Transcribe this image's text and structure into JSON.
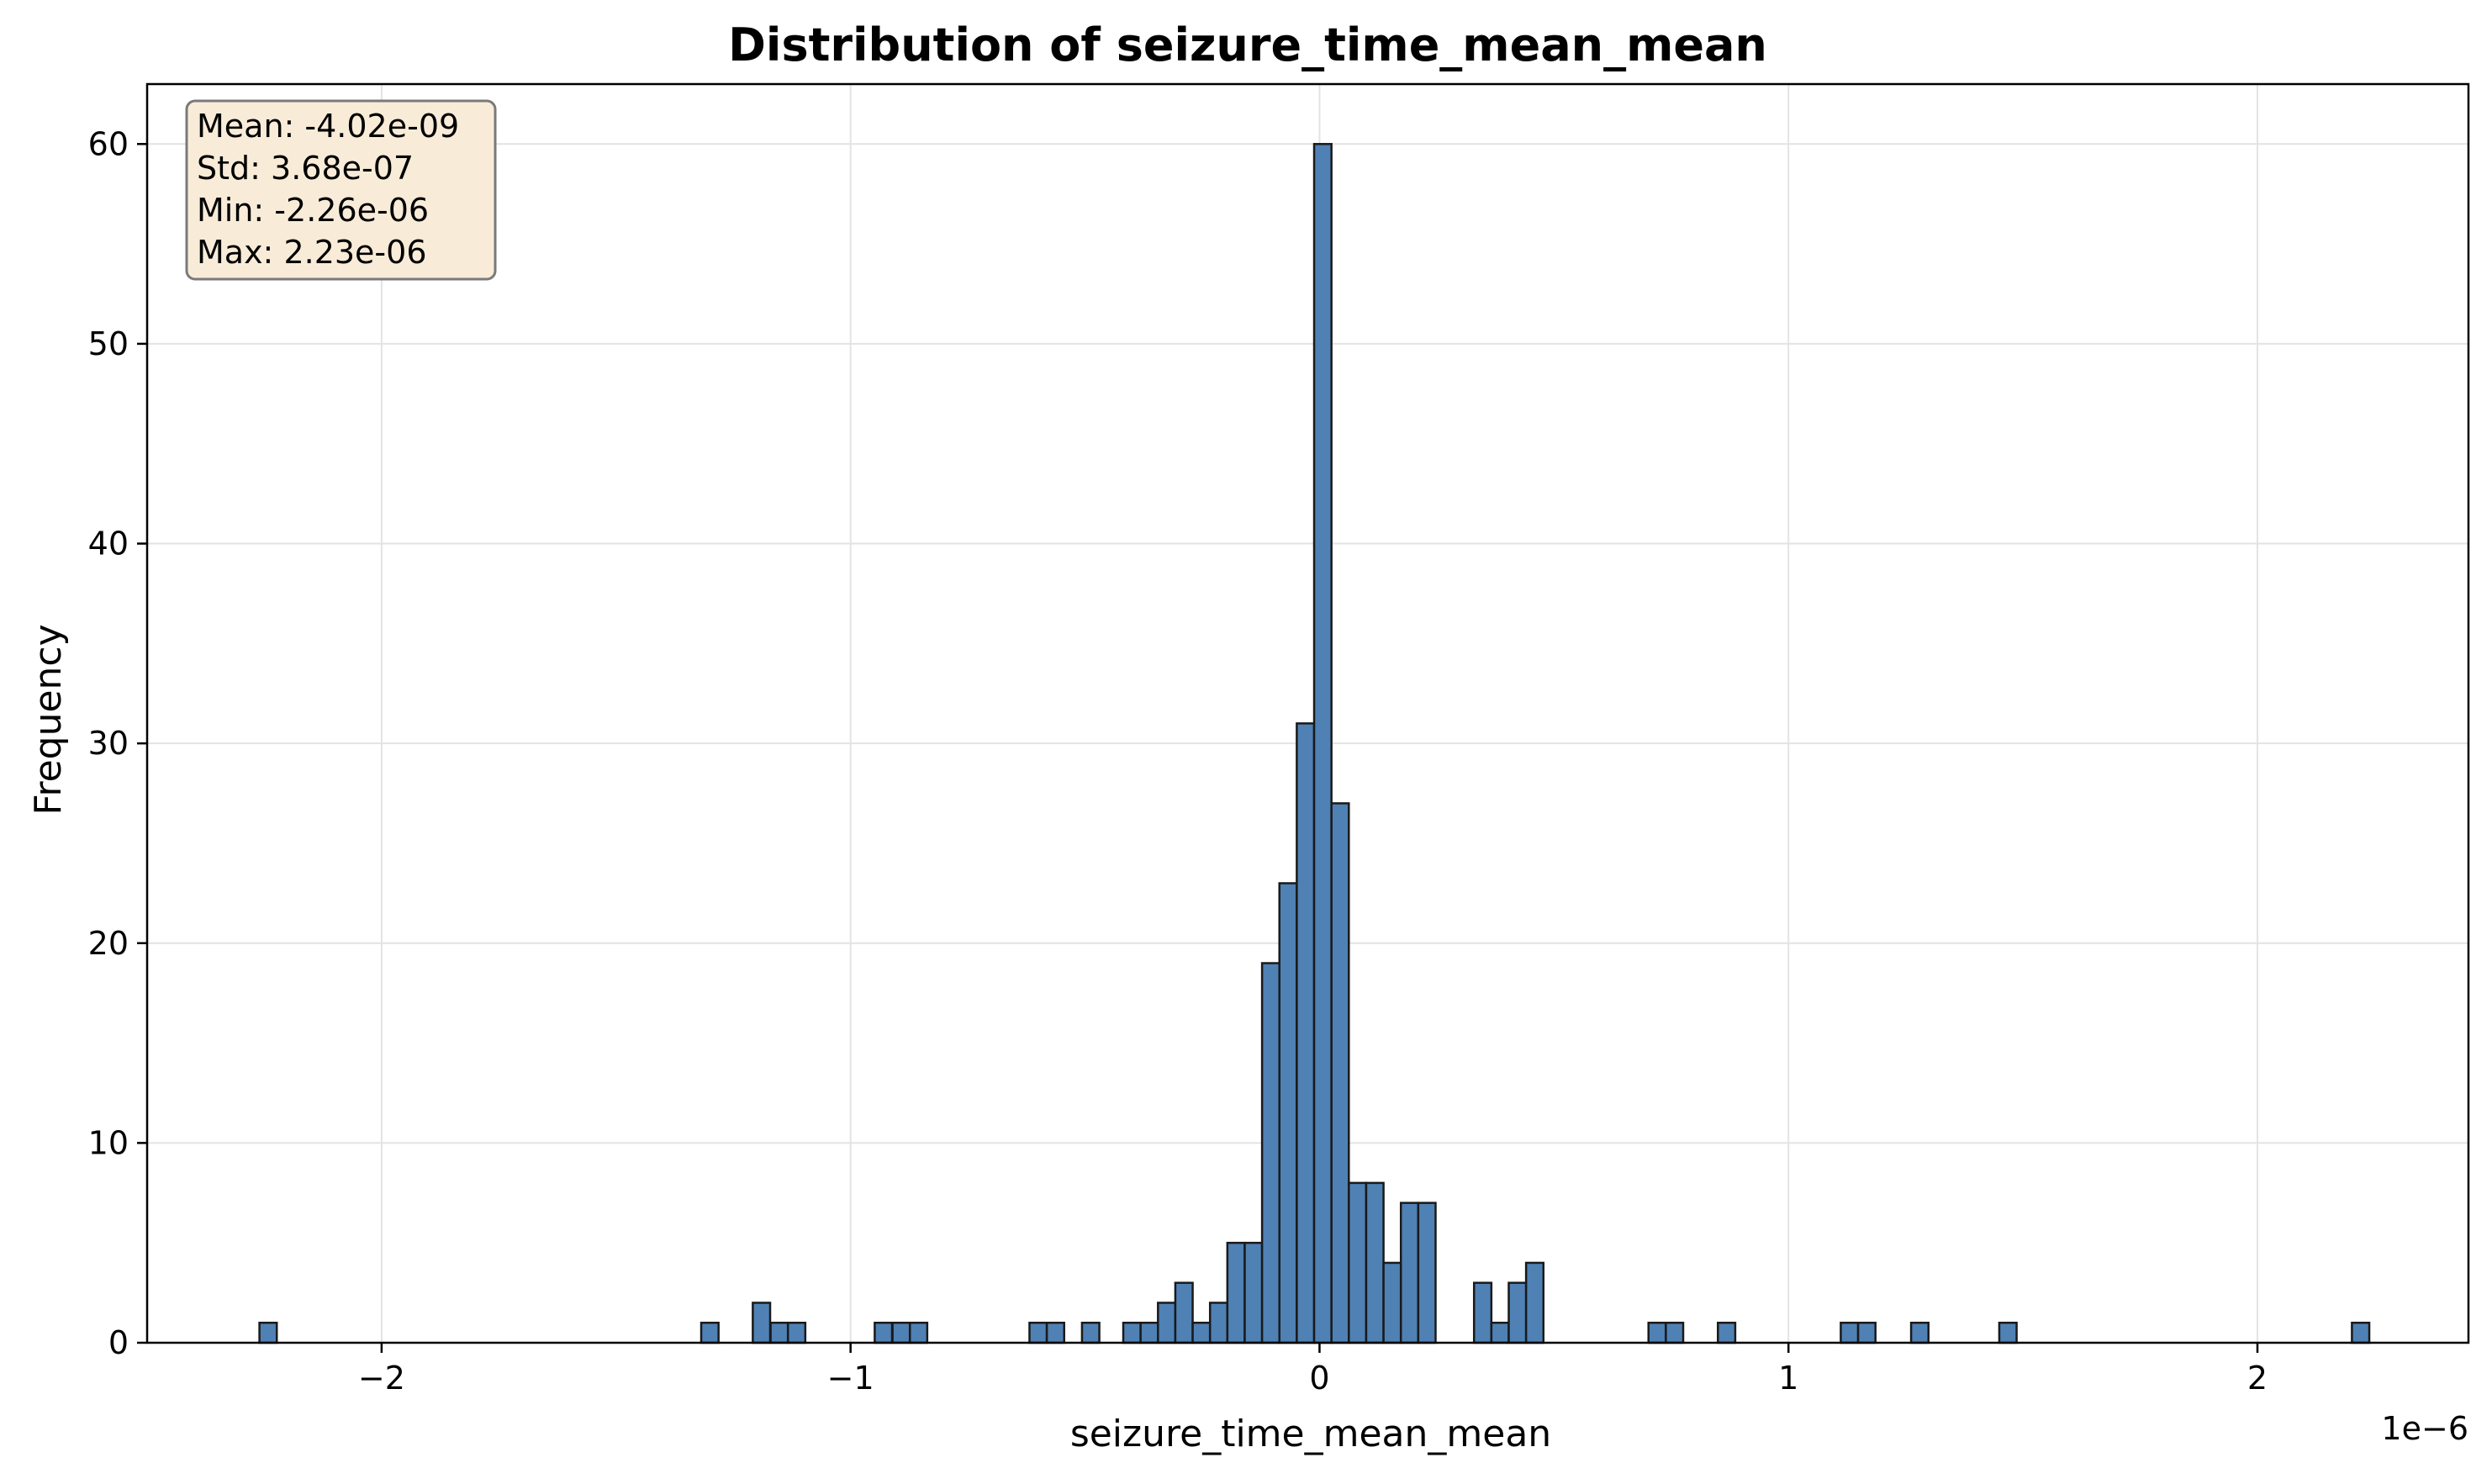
{
  "chart_data": {
    "type": "bar",
    "title": "Distribution of seizure_time_mean_mean",
    "xlabel": "seizure_time_mean_mean",
    "ylabel": "Frequency",
    "x_offset_label": "1e−6",
    "xlim": [
      -2.5,
      2.45
    ],
    "ylim": [
      0,
      63
    ],
    "bin_width": 0.037,
    "bar_color": "#4f81b4",
    "edge_color": "#1a1a1a",
    "grid": true,
    "x_ticks": [
      {
        "value": -2,
        "label": "−2"
      },
      {
        "value": -1,
        "label": "−1"
      },
      {
        "value": 0,
        "label": "0"
      },
      {
        "value": 1,
        "label": "1"
      },
      {
        "value": 2,
        "label": "2"
      }
    ],
    "y_ticks": [
      {
        "value": 0,
        "label": "0"
      },
      {
        "value": 10,
        "label": "10"
      },
      {
        "value": 20,
        "label": "20"
      },
      {
        "value": 30,
        "label": "30"
      },
      {
        "value": 40,
        "label": "40"
      },
      {
        "value": 50,
        "label": "50"
      },
      {
        "value": 60,
        "label": "60"
      }
    ],
    "bins": [
      {
        "x": -2.242,
        "count": 1
      },
      {
        "x": -1.3,
        "count": 1
      },
      {
        "x": -1.19,
        "count": 2
      },
      {
        "x": -1.152,
        "count": 1
      },
      {
        "x": -1.115,
        "count": 1
      },
      {
        "x": -0.93,
        "count": 1
      },
      {
        "x": -0.892,
        "count": 1
      },
      {
        "x": -0.855,
        "count": 1
      },
      {
        "x": -0.6,
        "count": 1
      },
      {
        "x": -0.563,
        "count": 1
      },
      {
        "x": -0.488,
        "count": 1
      },
      {
        "x": -0.4,
        "count": 1
      },
      {
        "x": -0.363,
        "count": 1
      },
      {
        "x": -0.326,
        "count": 2
      },
      {
        "x": -0.289,
        "count": 3
      },
      {
        "x": -0.252,
        "count": 1
      },
      {
        "x": -0.215,
        "count": 2
      },
      {
        "x": -0.178,
        "count": 5
      },
      {
        "x": -0.141,
        "count": 5
      },
      {
        "x": -0.104,
        "count": 19
      },
      {
        "x": -0.067,
        "count": 23
      },
      {
        "x": -0.03,
        "count": 31
      },
      {
        "x": 0.007,
        "count": 60
      },
      {
        "x": 0.044,
        "count": 27
      },
      {
        "x": 0.081,
        "count": 8
      },
      {
        "x": 0.118,
        "count": 8
      },
      {
        "x": 0.155,
        "count": 4
      },
      {
        "x": 0.192,
        "count": 7
      },
      {
        "x": 0.229,
        "count": 7
      },
      {
        "x": 0.348,
        "count": 3
      },
      {
        "x": 0.385,
        "count": 1
      },
      {
        "x": 0.422,
        "count": 3
      },
      {
        "x": 0.459,
        "count": 4
      },
      {
        "x": 0.72,
        "count": 1
      },
      {
        "x": 0.757,
        "count": 1
      },
      {
        "x": 0.868,
        "count": 1
      },
      {
        "x": 1.13,
        "count": 1
      },
      {
        "x": 1.167,
        "count": 1
      },
      {
        "x": 1.28,
        "count": 1
      },
      {
        "x": 1.468,
        "count": 1
      },
      {
        "x": 2.22,
        "count": 1
      }
    ],
    "stats_box": {
      "lines": [
        "Mean: -4.02e-09",
        "Std: 3.68e-07",
        "Min: -2.26e-06",
        "Max: 2.23e-06"
      ],
      "placement": "top-left",
      "background": "#f8ecd8",
      "border": "#7a7a7a"
    }
  }
}
